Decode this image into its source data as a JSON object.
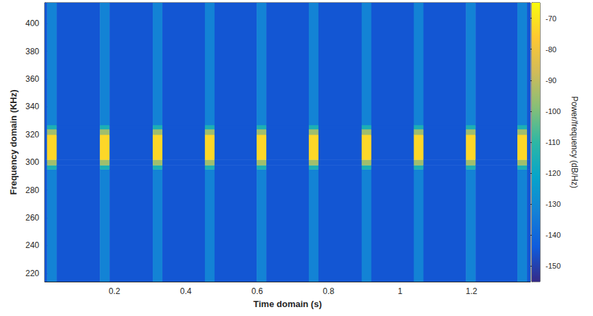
{
  "chart_data": {
    "type": "heatmap",
    "x_label": "Time domain (s)",
    "y_label": "Frequency domain (KHz)",
    "xlim": [
      0.005,
      1.365
    ],
    "xticks": [
      0.2,
      0.4,
      0.6,
      0.8,
      1,
      1.2
    ],
    "ylim": [
      214,
      415
    ],
    "yticks": [
      220,
      240,
      260,
      280,
      300,
      320,
      340,
      360,
      380,
      400
    ],
    "time_edges": [
      0.005,
      0.0115,
      0.0385,
      0.1595,
      0.1865,
      0.3075,
      0.3345,
      0.4535,
      0.4805,
      0.5985,
      0.6255,
      0.7445,
      0.7715,
      0.8925,
      0.9195,
      1.0385,
      1.0655,
      1.1845,
      1.2115,
      1.3285,
      1.3555,
      1.365
    ],
    "frequency_edges": [
      214,
      295,
      298,
      302,
      320,
      324,
      327,
      415
    ],
    "cells": [
      [
        -145,
        -145,
        -145,
        -145,
        -145,
        -145,
        -145
      ],
      [
        -132,
        -115,
        -95,
        -73,
        -95,
        -115,
        -132
      ],
      [
        -145,
        -145,
        -145,
        -145,
        -145,
        -145,
        -145
      ],
      [
        -132,
        -115,
        -95,
        -73,
        -95,
        -115,
        -132
      ],
      [
        -145,
        -145,
        -145,
        -145,
        -145,
        -145,
        -145
      ],
      [
        -132,
        -115,
        -95,
        -73,
        -95,
        -115,
        -132
      ],
      [
        -145,
        -145,
        -145,
        -145,
        -145,
        -145,
        -145
      ],
      [
        -132,
        -115,
        -95,
        -73,
        -95,
        -115,
        -132
      ],
      [
        -145,
        -145,
        -145,
        -145,
        -145,
        -145,
        -145
      ],
      [
        -132,
        -115,
        -95,
        -73,
        -95,
        -115,
        -132
      ],
      [
        -145,
        -145,
        -145,
        -145,
        -145,
        -145,
        -145
      ],
      [
        -132,
        -115,
        -95,
        -73,
        -95,
        -115,
        -132
      ],
      [
        -145,
        -145,
        -145,
        -145,
        -145,
        -145,
        -145
      ],
      [
        -132,
        -115,
        -95,
        -73,
        -95,
        -115,
        -132
      ],
      [
        -145,
        -145,
        -145,
        -145,
        -145,
        -145,
        -145
      ],
      [
        -132,
        -115,
        -95,
        -73,
        -95,
        -115,
        -132
      ],
      [
        -145,
        -145,
        -145,
        -145,
        -145,
        -145,
        -145
      ],
      [
        -132,
        -115,
        -95,
        -73,
        -95,
        -115,
        -132
      ],
      [
        -145,
        -145,
        -145,
        -145,
        -145,
        -145,
        -145
      ],
      [
        -132,
        -115,
        -95,
        -73,
        -95,
        -115,
        -132
      ],
      [
        -145,
        -145,
        -145,
        -145,
        -145,
        -145,
        -145
      ]
    ],
    "colorbar": {
      "label": "Power/frequency (dB/Hz)",
      "range": [
        -155,
        -65
      ],
      "ticks": [
        -150,
        -140,
        -130,
        -120,
        -110,
        -100,
        -90,
        -80,
        -70
      ]
    },
    "grid": false
  }
}
